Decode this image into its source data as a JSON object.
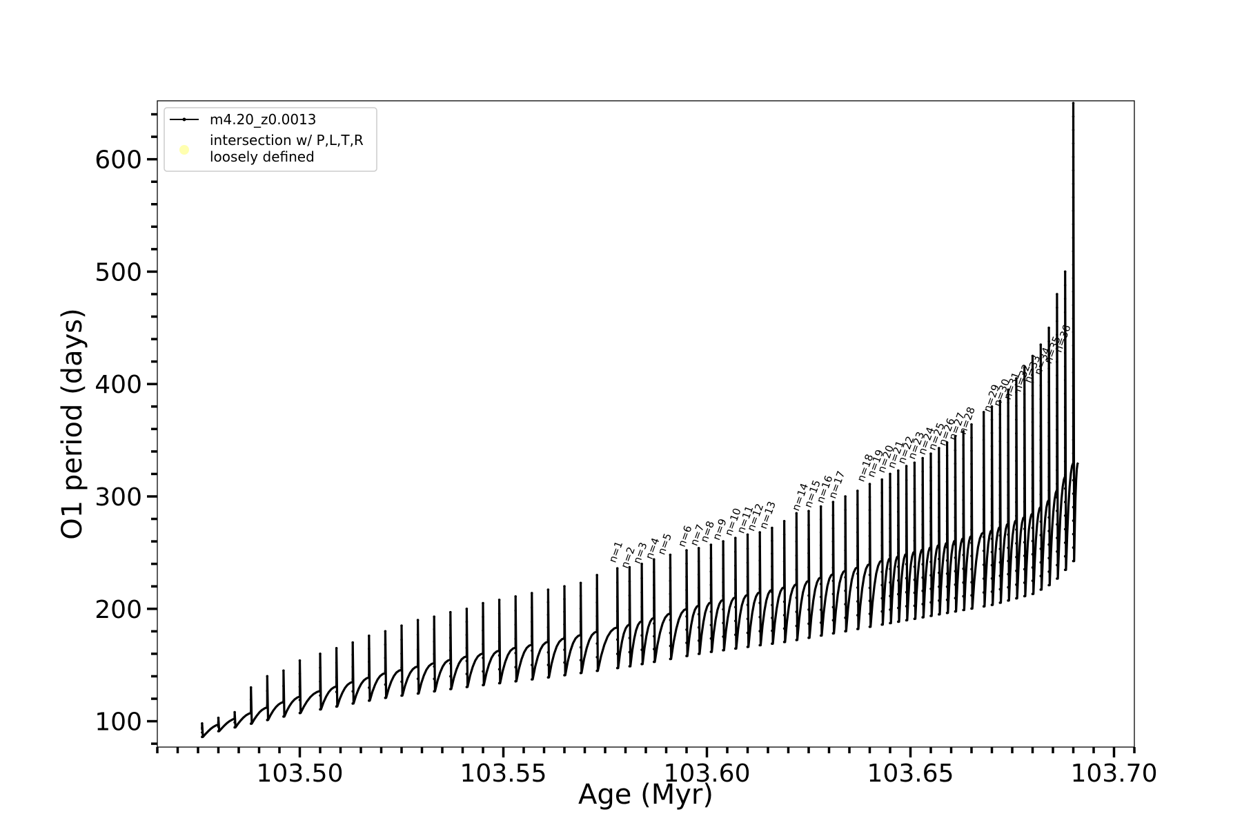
{
  "chart_data": {
    "type": "line",
    "title": "",
    "xlabel": "Age (Myr)",
    "ylabel": "O1 period (days)",
    "xlim": [
      103.465,
      103.705
    ],
    "ylim": [
      77,
      652
    ],
    "x_major_ticks": [
      103.5,
      103.55,
      103.6,
      103.65,
      103.7
    ],
    "x_tick_labels": [
      "103.50",
      "103.55",
      "103.60",
      "103.65",
      "103.70"
    ],
    "x_minor_step": 0.005,
    "y_major_ticks": [
      100,
      200,
      300,
      400,
      500,
      600
    ],
    "y_tick_labels": [
      "100",
      "200",
      "300",
      "400",
      "500",
      "600"
    ],
    "y_minor_step": 20,
    "grid": false,
    "legend": {
      "placement": "upper-left",
      "entries": [
        {
          "label": "m4.20_z0.0013",
          "marker": "line-with-dots",
          "color": "#000000"
        },
        {
          "label_line1": "intersection w/ P,L,T,R",
          "label_line2": "loosely defined",
          "marker": "circle",
          "color": "#ffffb0"
        }
      ]
    },
    "series": [
      {
        "name": "m4.20_z0.0013",
        "color": "#000000",
        "description": "O1 period vs age with thermal-pulse spikes",
        "baseline": [
          [
            103.476,
            92
          ],
          [
            103.49,
            110
          ],
          [
            103.5,
            122
          ],
          [
            103.52,
            142
          ],
          [
            103.54,
            157
          ],
          [
            103.56,
            170
          ],
          [
            103.58,
            185
          ],
          [
            103.6,
            205
          ],
          [
            103.62,
            220
          ],
          [
            103.64,
            240
          ],
          [
            103.66,
            260
          ],
          [
            103.67,
            270
          ],
          [
            103.68,
            285
          ],
          [
            103.685,
            300
          ],
          [
            103.69,
            330
          ]
        ],
        "pulse_peaks": [
          [
            103.476,
            98
          ],
          [
            103.48,
            103
          ],
          [
            103.484,
            108
          ],
          [
            103.488,
            130
          ],
          [
            103.492,
            140
          ],
          [
            103.496,
            145
          ],
          [
            103.5,
            154
          ],
          [
            103.505,
            160
          ],
          [
            103.509,
            165
          ],
          [
            103.513,
            170
          ],
          [
            103.517,
            176
          ],
          [
            103.521,
            180
          ],
          [
            103.525,
            185
          ],
          [
            103.529,
            190
          ],
          [
            103.533,
            193
          ],
          [
            103.537,
            197
          ],
          [
            103.541,
            200
          ],
          [
            103.545,
            205
          ],
          [
            103.549,
            208
          ],
          [
            103.553,
            211
          ],
          [
            103.557,
            214
          ],
          [
            103.561,
            217
          ],
          [
            103.565,
            220
          ],
          [
            103.569,
            223
          ],
          [
            103.573,
            230
          ],
          [
            103.578,
            236
          ],
          [
            103.581,
            237
          ],
          [
            103.584,
            240
          ],
          [
            103.587,
            244
          ],
          [
            103.591,
            248
          ],
          [
            103.595,
            252
          ],
          [
            103.598,
            254
          ],
          [
            103.601,
            257
          ],
          [
            103.604,
            260
          ],
          [
            103.607,
            263
          ],
          [
            103.61,
            266
          ],
          [
            103.613,
            268
          ],
          [
            103.616,
            272
          ],
          [
            103.619,
            278
          ],
          [
            103.622,
            285
          ],
          [
            103.625,
            287
          ],
          [
            103.628,
            291
          ],
          [
            103.631,
            295
          ],
          [
            103.634,
            300
          ],
          [
            103.637,
            305
          ],
          [
            103.64,
            311
          ],
          [
            103.643,
            315
          ],
          [
            103.645,
            320
          ],
          [
            103.647,
            323
          ],
          [
            103.649,
            327
          ],
          [
            103.651,
            330
          ],
          [
            103.653,
            334
          ],
          [
            103.655,
            338
          ],
          [
            103.657,
            343
          ],
          [
            103.659,
            348
          ],
          [
            103.661,
            353
          ],
          [
            103.663,
            358
          ],
          [
            103.665,
            364
          ],
          [
            103.668,
            375
          ],
          [
            103.67,
            380
          ],
          [
            103.672,
            385
          ],
          [
            103.674,
            395
          ],
          [
            103.676,
            405
          ],
          [
            103.678,
            415
          ],
          [
            103.68,
            425
          ],
          [
            103.682,
            435
          ],
          [
            103.684,
            450
          ],
          [
            103.686,
            480
          ],
          [
            103.688,
            500
          ],
          [
            103.69,
            650
          ]
        ]
      }
    ],
    "annotations": [
      {
        "text": "n=1",
        "x": 103.5775,
        "y": 238
      },
      {
        "text": "n=2",
        "x": 103.5805,
        "y": 233
      },
      {
        "text": "n=3",
        "x": 103.5835,
        "y": 237
      },
      {
        "text": "n=4",
        "x": 103.5865,
        "y": 241
      },
      {
        "text": "n=5",
        "x": 103.5895,
        "y": 245
      },
      {
        "text": "n=6",
        "x": 103.5945,
        "y": 252
      },
      {
        "text": "n=7",
        "x": 103.5975,
        "y": 253
      },
      {
        "text": "n=8",
        "x": 103.6,
        "y": 256
      },
      {
        "text": "n=9",
        "x": 103.603,
        "y": 258
      },
      {
        "text": "n=10",
        "x": 103.606,
        "y": 262
      },
      {
        "text": "n=11",
        "x": 103.609,
        "y": 264
      },
      {
        "text": "n=12",
        "x": 103.6115,
        "y": 266
      },
      {
        "text": "n=13",
        "x": 103.6145,
        "y": 268
      },
      {
        "text": "n=14",
        "x": 103.6225,
        "y": 284
      },
      {
        "text": "n=15",
        "x": 103.6255,
        "y": 287
      },
      {
        "text": "n=16",
        "x": 103.6285,
        "y": 291
      },
      {
        "text": "n=17",
        "x": 103.6315,
        "y": 295
      },
      {
        "text": "n=18",
        "x": 103.6385,
        "y": 310
      },
      {
        "text": "n=19",
        "x": 103.641,
        "y": 314
      },
      {
        "text": "n=20",
        "x": 103.6435,
        "y": 318
      },
      {
        "text": "n=21",
        "x": 103.646,
        "y": 322
      },
      {
        "text": "n=22",
        "x": 103.6485,
        "y": 326
      },
      {
        "text": "n=23",
        "x": 103.651,
        "y": 330
      },
      {
        "text": "n=24",
        "x": 103.6535,
        "y": 334
      },
      {
        "text": "n=25",
        "x": 103.656,
        "y": 338
      },
      {
        "text": "n=26",
        "x": 103.6585,
        "y": 342
      },
      {
        "text": "n=27",
        "x": 103.661,
        "y": 347
      },
      {
        "text": "n=28",
        "x": 103.6635,
        "y": 352
      },
      {
        "text": "n=29",
        "x": 103.6695,
        "y": 372
      },
      {
        "text": "n=30",
        "x": 103.672,
        "y": 377
      },
      {
        "text": "n=31",
        "x": 103.6745,
        "y": 383
      },
      {
        "text": "n=32",
        "x": 103.677,
        "y": 390
      },
      {
        "text": "n=33",
        "x": 103.6795,
        "y": 398
      },
      {
        "text": "n=34",
        "x": 103.682,
        "y": 405
      },
      {
        "text": "n=35",
        "x": 103.6845,
        "y": 415
      },
      {
        "text": "n=36",
        "x": 103.687,
        "y": 425
      }
    ]
  }
}
